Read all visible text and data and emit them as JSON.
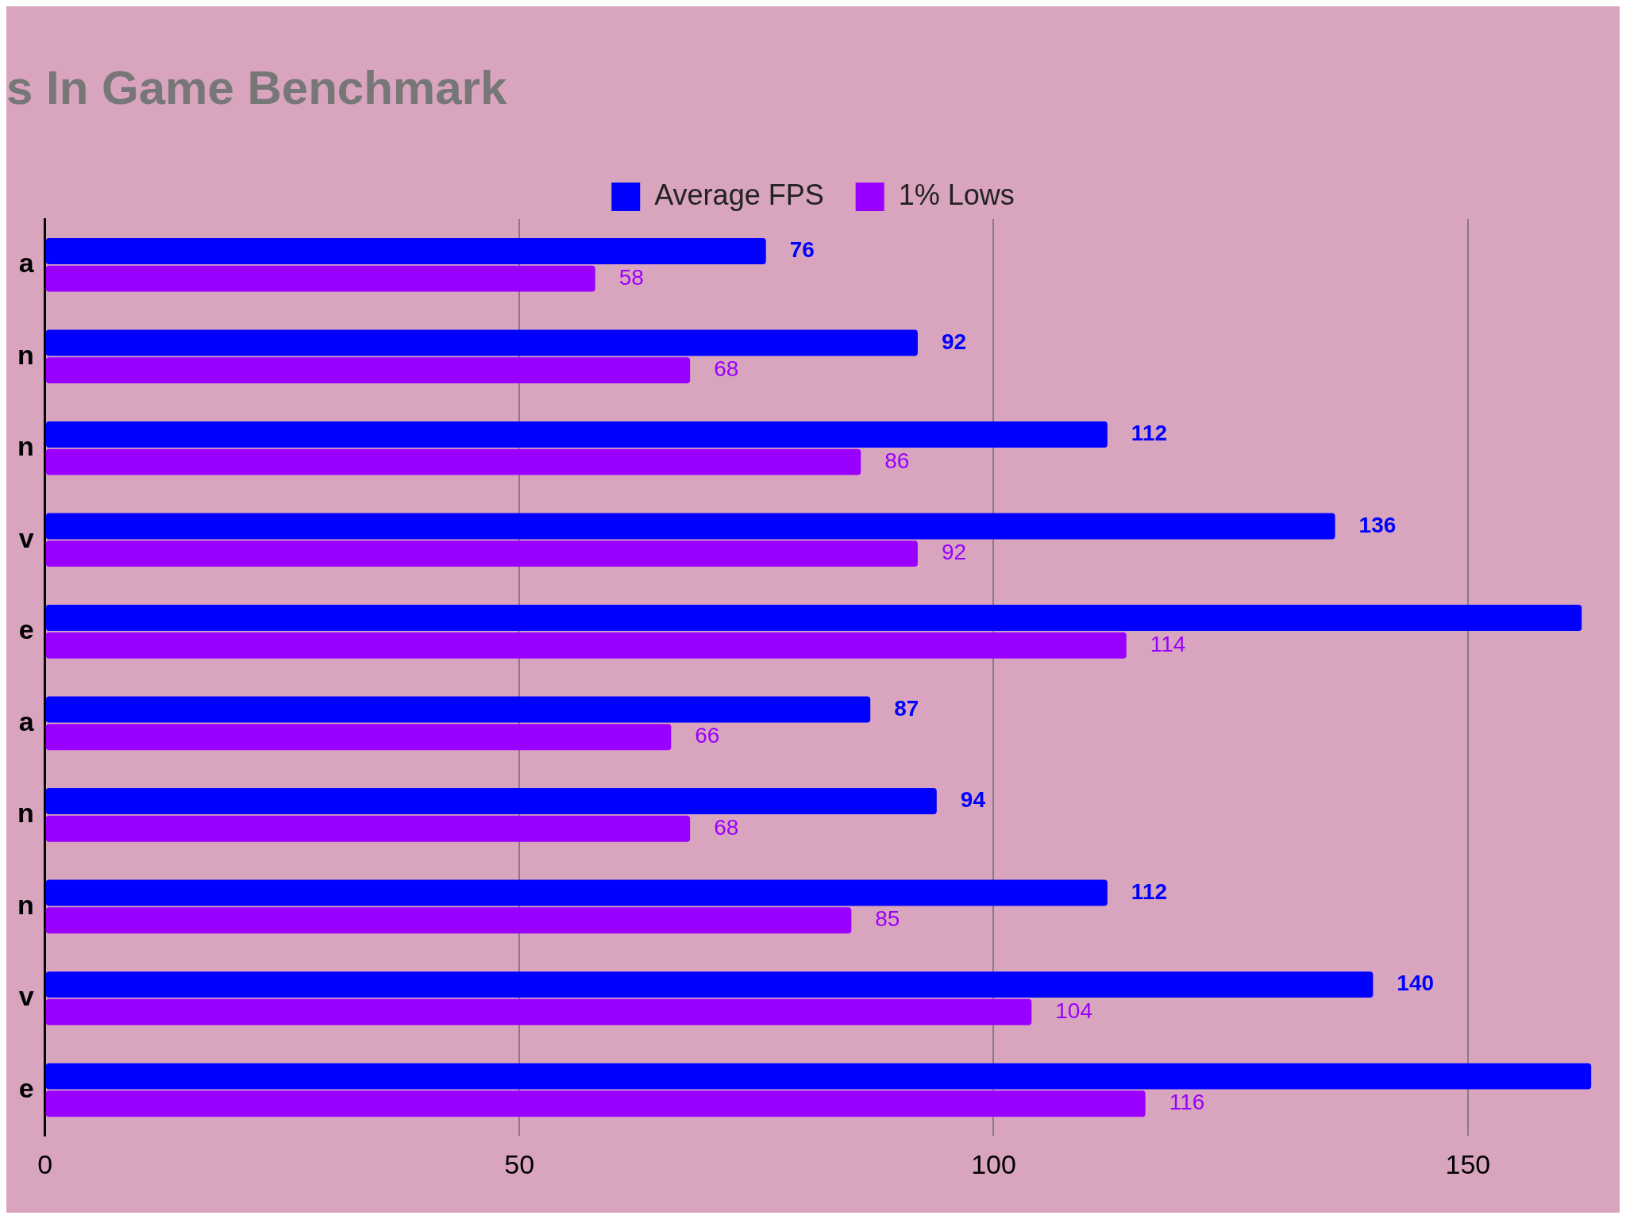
{
  "chart_data": {
    "type": "bar",
    "orientation": "horizontal",
    "title": "s In Game Benchmark",
    "categories": [
      "a",
      "n",
      "n",
      "v",
      "e",
      "a",
      "n",
      "n",
      "v",
      "e"
    ],
    "series": [
      {
        "name": "Average FPS",
        "color": "#0000ff",
        "values": [
          76,
          92,
          112,
          136,
          162,
          87,
          94,
          112,
          140,
          163
        ],
        "value_labels": [
          "76",
          "92",
          "112",
          "136",
          null,
          "87",
          "94",
          "112",
          "140",
          null
        ]
      },
      {
        "name": "1% Lows",
        "color": "#9900ff",
        "values": [
          58,
          68,
          86,
          92,
          114,
          66,
          68,
          85,
          104,
          116
        ],
        "value_labels": [
          "58",
          "68",
          "86",
          "92",
          "114",
          "66",
          "68",
          "85",
          "104",
          "116"
        ]
      }
    ],
    "xlim": [
      0,
      166
    ],
    "xticks": [
      0,
      50,
      100,
      150
    ],
    "grid": "x",
    "legend": "top"
  }
}
